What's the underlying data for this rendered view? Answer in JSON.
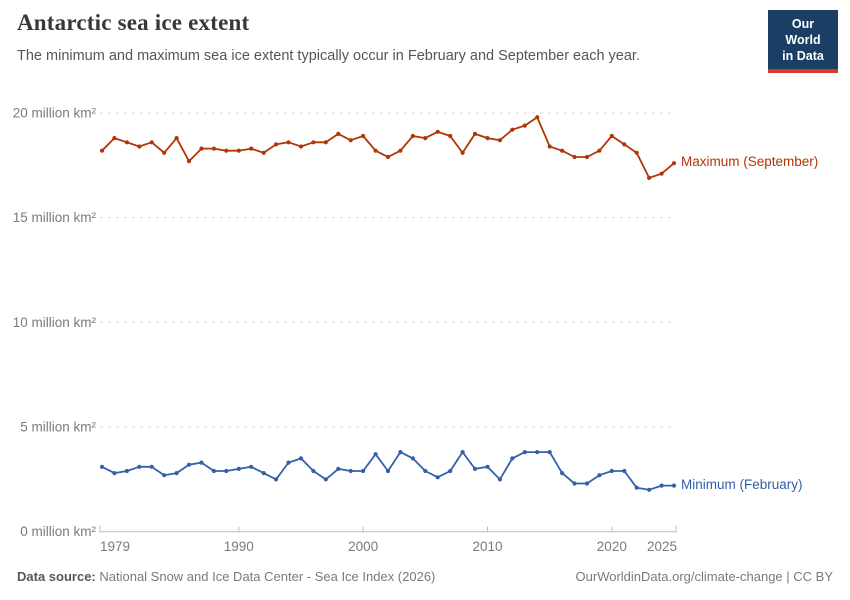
{
  "logo": {
    "line1": "Our World",
    "line2": "in Data",
    "bg_color": "#1A3E64",
    "accent_color": "#D7382C"
  },
  "chart_data": {
    "type": "line",
    "title": "Antarctic sea ice extent",
    "subtitle": "The minimum and maximum sea ice extent typically occur in February and September each year.",
    "xlabel": "",
    "ylabel": "million km²",
    "x": [
      1979,
      1980,
      1981,
      1982,
      1983,
      1984,
      1985,
      1986,
      1987,
      1988,
      1989,
      1990,
      1991,
      1992,
      1993,
      1994,
      1995,
      1996,
      1997,
      1998,
      1999,
      2000,
      2001,
      2002,
      2003,
      2004,
      2005,
      2006,
      2007,
      2008,
      2009,
      2010,
      2011,
      2012,
      2013,
      2014,
      2015,
      2016,
      2017,
      2018,
      2019,
      2020,
      2021,
      2022,
      2023,
      2024,
      2025
    ],
    "series": [
      {
        "name": "Maximum (September)",
        "color": "#B13507",
        "values": [
          18.2,
          18.8,
          18.6,
          18.4,
          18.6,
          18.1,
          18.8,
          17.7,
          18.3,
          18.3,
          18.2,
          18.2,
          18.3,
          18.1,
          18.5,
          18.6,
          18.4,
          18.6,
          18.6,
          19.0,
          18.7,
          18.9,
          18.2,
          17.9,
          18.2,
          18.9,
          18.8,
          19.1,
          18.9,
          18.1,
          19.0,
          18.8,
          18.7,
          19.2,
          19.4,
          19.8,
          18.4,
          18.2,
          17.9,
          17.9,
          18.2,
          18.9,
          18.5,
          18.1,
          16.9,
          17.1,
          17.6
        ]
      },
      {
        "name": "Minimum (February)",
        "color": "#3360A9",
        "values": [
          3.1,
          2.8,
          2.9,
          3.1,
          3.1,
          2.7,
          2.8,
          3.2,
          3.3,
          2.9,
          2.9,
          3.0,
          3.1,
          2.8,
          2.5,
          3.3,
          3.5,
          2.9,
          2.5,
          3.0,
          2.9,
          2.9,
          3.7,
          2.9,
          3.8,
          3.5,
          2.9,
          2.6,
          2.9,
          3.8,
          3.0,
          3.1,
          2.5,
          3.5,
          3.8,
          3.8,
          3.8,
          2.8,
          2.3,
          2.3,
          2.7,
          2.9,
          2.9,
          2.1,
          2.0,
          2.2,
          2.2
        ]
      }
    ],
    "yticks": [
      0,
      5,
      10,
      15,
      20
    ],
    "ytick_suffix": " million km²",
    "xticks": [
      1979,
      1990,
      2000,
      2010,
      2020,
      2025
    ],
    "ylim": [
      0,
      20
    ],
    "xlim": [
      1979,
      2025
    ],
    "grid": "horizontal-dashed",
    "legend_position": "end-of-line"
  },
  "footer": {
    "source_label": "Data source:",
    "source_text": " National Snow and Ice Data Center - Sea Ice Index (2026)",
    "attribution": "OurWorldinData.org/climate-change | CC BY"
  }
}
